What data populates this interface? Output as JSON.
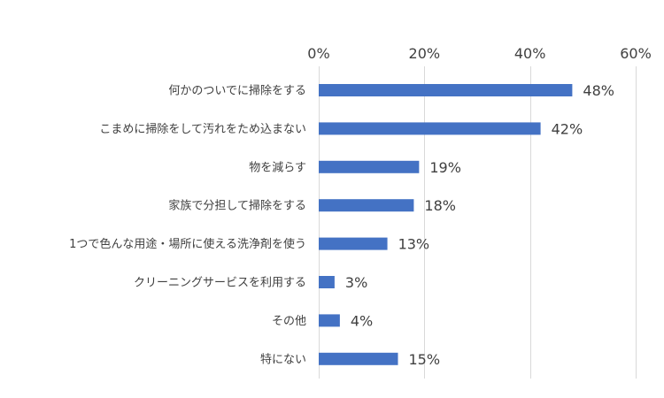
{
  "chart_data": {
    "type": "bar",
    "orientation": "horizontal",
    "categories": [
      "何かのついでに掃除をする",
      "こまめに掃除をして汚れをため込まない",
      "物を減らす",
      "家族で分担して掃除をする",
      "1つで色んな用途・場所に使える洗浄剤を使う",
      "クリーニングサービスを利用する",
      "その他",
      "特にない"
    ],
    "values": [
      48,
      42,
      19,
      18,
      13,
      3,
      4,
      15
    ],
    "data_labels": [
      "48%",
      "42%",
      "19%",
      "18%",
      "13%",
      "3%",
      "4%",
      "15%"
    ],
    "x_ticks": [
      "0%",
      "20%",
      "40%",
      "60%"
    ],
    "x_tick_values": [
      0,
      20,
      40,
      60
    ],
    "xlim": [
      0,
      60
    ],
    "x_axis_position": "top",
    "grid": true,
    "legend": "none",
    "bar_color": "#4472c4",
    "grid_color": "#d9d9d9",
    "title": "",
    "xlabel": "",
    "ylabel": ""
  }
}
